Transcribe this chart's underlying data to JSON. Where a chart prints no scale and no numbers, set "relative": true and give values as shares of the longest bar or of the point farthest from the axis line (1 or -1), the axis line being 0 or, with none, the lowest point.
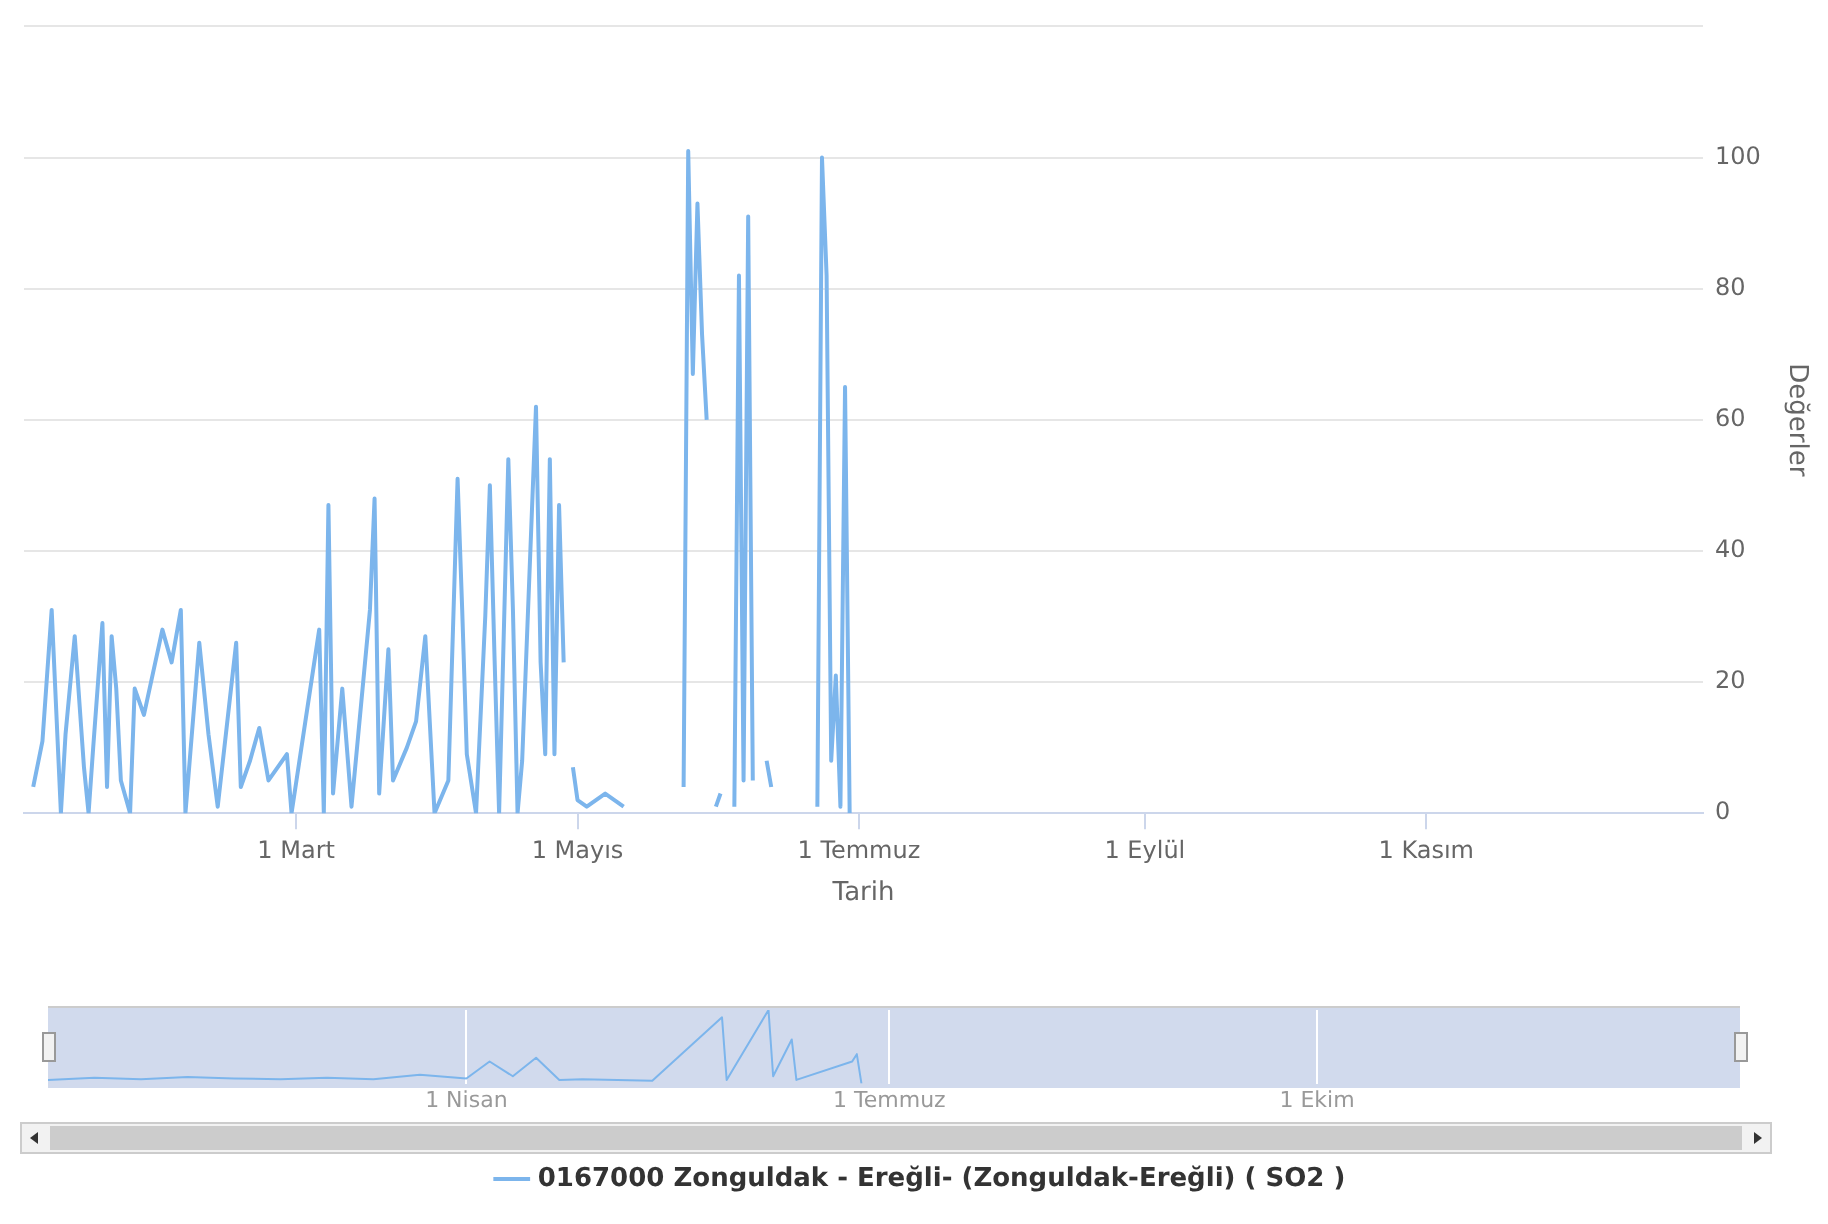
{
  "chart_data": [
    {
      "type": "line",
      "xlabel": "Tarih",
      "ylabel": "Değerler",
      "legend": "bottom",
      "grid": "y",
      "marker": "none",
      "line_style": "solid",
      "xlim": [
        "--01-01",
        "--12-31"
      ],
      "xticks": [
        {
          "value": "--03-01",
          "label": "1 Mart"
        },
        {
          "value": "--05-01",
          "label": "1 Mayıs"
        },
        {
          "value": "--07-01",
          "label": "1 Temmuz"
        },
        {
          "value": "--09-01",
          "label": "1 Eylül"
        },
        {
          "value": "--11-01",
          "label": "1 Kasım"
        }
      ],
      "ylim": [
        0,
        120
      ],
      "yticks": [
        0,
        20,
        40,
        60,
        80,
        100,
        {
          "value": 120,
          "label": null
        }
      ],
      "x": [
        "--01-03",
        "--01-05",
        "--01-07",
        "--01-09",
        "--01-10",
        "--01-12",
        "--01-14",
        "--01-15",
        "--01-16",
        "--01-18",
        "--01-19",
        "--01-20",
        "--01-21",
        "--01-22",
        "--01-24",
        "--01-25",
        "--01-27",
        "--01-31",
        "--02-02",
        "--02-04",
        "--02-05",
        "--02-08",
        "--02-10",
        "--02-12",
        "--02-16",
        "--02-17",
        "--02-19",
        "--02-21",
        "--02-23",
        "--02-27",
        "--02-28",
        "--03-03",
        "--03-06",
        "--03-07",
        "--03-08",
        "--03-09",
        "--03-11",
        "--03-13",
        "--03-17",
        "--03-18",
        "--03-19",
        "--03-21",
        "--03-22",
        "--03-25",
        "--03-27",
        "--03-29",
        "--03-31",
        "--04-03",
        "--04-04",
        "--04-05",
        "--04-06",
        "--04-07",
        "--04-09",
        "--04-11",
        "--04-12",
        "--04-13",
        "--04-14",
        "--04-16",
        "--04-17",
        "--04-18",
        "--04-19",
        "--04-22",
        "--04-23",
        "--04-24",
        "--04-25",
        "--04-26",
        "--04-27",
        "--04-28",
        "--04-29",
        "--04-30",
        "--05-01",
        "--05-03",
        "--05-07",
        "--05-11",
        "--05-12",
        "--05-24",
        "--05-25",
        "--05-26",
        "--05-27",
        "--05-28",
        "--05-29",
        "--05-30",
        "--05-31",
        "--06-01",
        "--06-02",
        "--06-04",
        "--06-05",
        "--06-06",
        "--06-07",
        "--06-08",
        "--06-09",
        "--06-11",
        "--06-12",
        "--06-13",
        "--06-22",
        "--06-23",
        "--06-24",
        "--06-25",
        "--06-26",
        "--06-27",
        "--06-28",
        "--06-29"
      ],
      "series": [
        {
          "name": "0167000 Zonguldak - Ereğli- (Zonguldak-Ereğli) ( SO2 )",
          "color": "#7cb5ec",
          "values": [
            4,
            11,
            31,
            0,
            12,
            27,
            7,
            0,
            10,
            29,
            4,
            27,
            19,
            5,
            0,
            19,
            15,
            28,
            23,
            31,
            0,
            26,
            12,
            1,
            26,
            4,
            8,
            13,
            5,
            9,
            0,
            14,
            28,
            0,
            47,
            3,
            19,
            1,
            31,
            48,
            3,
            25,
            5,
            10,
            14,
            27,
            0,
            5,
            28,
            51,
            31,
            9,
            0,
            30,
            50,
            24,
            0,
            54,
            31,
            0,
            8,
            62,
            23,
            9,
            54,
            9,
            47,
            23,
            null,
            7,
            2,
            1,
            3,
            1,
            null,
            4,
            101,
            67,
            93,
            73,
            60,
            null,
            1,
            3,
            null,
            1,
            82,
            5,
            91,
            5,
            null,
            8,
            4,
            null,
            1,
            100,
            82,
            8,
            21,
            1,
            65,
            0
          ]
        }
      ]
    },
    {
      "type": "line",
      "relative": true,
      "tick_labels": "x",
      "grid": "x",
      "legend": false,
      "marker": "none",
      "xlim": [
        "--01-01",
        "--12-31"
      ],
      "xticks": [
        {
          "value": "--04-01",
          "label": "1 Nisan"
        },
        {
          "value": "--07-01",
          "label": "1 Temmuz"
        },
        {
          "value": "--10-01",
          "label": "1 Ekim"
        }
      ],
      "x": [
        "--01-01",
        "--01-11",
        "--01-21",
        "--01-31",
        "--02-10",
        "--02-20",
        "--03-02",
        "--03-12",
        "--03-22",
        "--04-01",
        "--04-06",
        "--04-11",
        "--04-16",
        "--04-21",
        "--04-26",
        "--05-11",
        "--05-26",
        "--05-27",
        "--06-05",
        "--06-06",
        "--06-10",
        "--06-11",
        "--06-23",
        "--06-24",
        "--06-25"
      ],
      "series": [
        {
          "color": "#7cb5ec",
          "values": [
            0.05,
            0.08,
            0.06,
            0.09,
            0.07,
            0.06,
            0.08,
            0.06,
            0.12,
            0.07,
            0.3,
            0.1,
            0.35,
            0.05,
            0.06,
            0.04,
            0.9,
            0.05,
            1,
            0.1,
            0.6,
            0.05,
            0.3,
            0.4,
            0
          ]
        }
      ]
    }
  ]
}
